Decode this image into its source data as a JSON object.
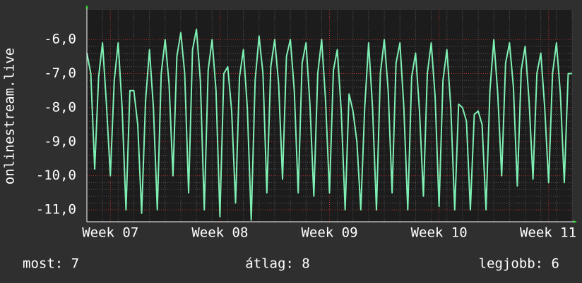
{
  "chart_data": {
    "type": "line",
    "y_label": "onlinestream.live",
    "color": "#7ff0b4",
    "grid": true,
    "ylim": [
      -11.35,
      -5.13
    ],
    "yticks": [
      {
        "value": -11,
        "label": "-11,0"
      },
      {
        "value": -10,
        "label": "-10,0"
      },
      {
        "value": -9,
        "label": "-9,0"
      },
      {
        "value": -8,
        "label": "-8,0"
      },
      {
        "value": -7,
        "label": "-7,0"
      },
      {
        "value": -6,
        "label": "-6,0"
      }
    ],
    "categories": [
      null,
      null,
      null,
      null,
      null,
      null,
      "Week 07",
      null,
      null,
      null,
      null,
      null,
      null,
      null,
      null,
      null,
      null,
      null,
      null,
      null,
      null,
      null,
      null,
      null,
      null,
      null,
      null,
      null,
      null,
      null,
      null,
      null,
      null,
      null,
      "Week 08",
      null,
      null,
      null,
      null,
      null,
      null,
      null,
      null,
      null,
      null,
      null,
      null,
      null,
      null,
      null,
      null,
      null,
      null,
      null,
      null,
      null,
      null,
      null,
      null,
      null,
      null,
      null,
      "Week 09",
      null,
      null,
      null,
      null,
      null,
      null,
      null,
      null,
      null,
      null,
      null,
      null,
      null,
      null,
      null,
      null,
      null,
      null,
      null,
      null,
      null,
      null,
      null,
      null,
      null,
      null,
      null,
      "Week 10",
      null,
      null,
      null,
      null,
      null,
      null,
      null,
      null,
      null,
      null,
      null,
      null,
      null,
      null,
      null,
      null,
      null,
      null,
      null,
      null,
      null,
      null,
      null,
      null,
      null,
      null,
      null,
      "Week 11",
      null,
      null,
      null,
      null,
      null,
      null
    ],
    "values": [
      -6.4,
      -7.0,
      -9.8,
      -7.1,
      -6.1,
      -7.9,
      -10.0,
      -7.2,
      -6.1,
      -8.0,
      -11.0,
      -7.5,
      -7.5,
      -8.5,
      -11.1,
      -7.8,
      -6.3,
      -8.0,
      -11.0,
      -7.0,
      -6.0,
      -7.3,
      -10.0,
      -6.5,
      -5.8,
      -7.0,
      -10.5,
      -6.3,
      -5.7,
      -7.2,
      -11.0,
      -6.9,
      -6.0,
      -7.5,
      -11.2,
      -7.0,
      -6.8,
      -8.1,
      -10.8,
      -7.1,
      -6.3,
      -8.0,
      -11.3,
      -7.2,
      -5.9,
      -7.0,
      -10.5,
      -6.8,
      -6.0,
      -7.3,
      -10.1,
      -6.5,
      -6.0,
      -7.5,
      -10.5,
      -6.7,
      -6.1,
      -7.9,
      -10.6,
      -7.0,
      -6.0,
      -7.8,
      -10.5,
      -6.9,
      -6.3,
      -8.1,
      -11.0,
      -7.6,
      -8.1,
      -9.0,
      -11.0,
      -8.0,
      -6.1,
      -8.0,
      -11.0,
      -7.0,
      -6.0,
      -7.5,
      -10.5,
      -6.7,
      -6.1,
      -8.0,
      -11.0,
      -7.1,
      -6.4,
      -8.1,
      -10.6,
      -7.0,
      -6.1,
      -7.7,
      -10.9,
      -7.2,
      -6.3,
      -8.0,
      -11.0,
      -7.9,
      -8.0,
      -8.4,
      -11.0,
      -8.2,
      -8.1,
      -8.5,
      -11.0,
      -7.5,
      -6.0,
      -7.6,
      -10.0,
      -6.7,
      -6.1,
      -7.4,
      -10.3,
      -6.9,
      -6.2,
      -7.8,
      -10.1,
      -7.0,
      -6.4,
      -8.0,
      -10.2,
      -7.0,
      -6.1,
      -7.6,
      -10.2,
      -7.0,
      -7.0
    ],
    "annotations": [
      "most: 7",
      "átlag: 8",
      "legjobb: 6"
    ]
  }
}
